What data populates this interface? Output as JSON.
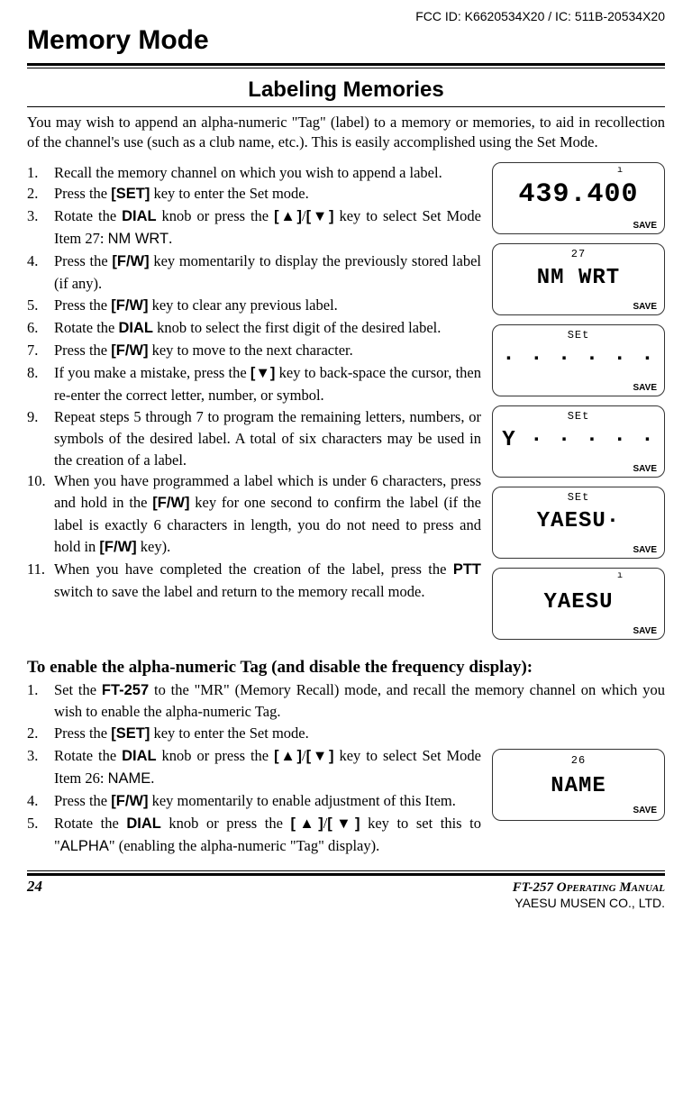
{
  "meta": {
    "fcc": "FCC ID: K6620534X20 /  IC: 511B-20534X20",
    "chapter": "Memory Mode",
    "section": "Labeling Memories",
    "page_number": "24",
    "manual": "FT-257 Operating Manual",
    "company": "YAESU MUSEN CO., LTD."
  },
  "intro": "You may wish to append an alpha-numeric \"Tag\" (label) to a memory or memories, to aid in recollection of the channel's use (such as a club name, etc.). This is easily accomplished using the Set Mode.",
  "figures": [
    {
      "tick": "ı",
      "small": "",
      "main": "439.400",
      "save": "SAVE",
      "style": "digits"
    },
    {
      "tick": "",
      "small": "27",
      "main": "NM  WRT",
      "save": "SAVE",
      "style": "text"
    },
    {
      "tick": "",
      "small": "SEt",
      "main": "·  ·  ·  ·  ·  ·",
      "save": "SAVE",
      "style": "dots"
    },
    {
      "tick": "",
      "small": "SEt",
      "main": "Y ·  ·  ·  ·  ·",
      "save": "SAVE",
      "style": "dots"
    },
    {
      "tick": "",
      "small": "SEt",
      "main": "YAESU·",
      "save": "SAVE",
      "style": "text"
    },
    {
      "tick": "ı",
      "small": "",
      "main": "YAESU",
      "save": "SAVE",
      "style": "text"
    }
  ],
  "steps1": [
    {
      "n": "1.",
      "pre": "Recall the memory channel on which you wish to append a label."
    },
    {
      "n": "2.",
      "pre": "Press the ",
      "k1": "[SET]",
      "post": " key to enter the Set mode."
    },
    {
      "n": "3.",
      "pre": "Rotate the ",
      "k1": "DIAL",
      "mid1": " knob or press the ",
      "k2": "[▲]",
      "sep": "/",
      "k3": "[▼]",
      "mid2": " key to select Set Mode Item 27: ",
      "code": "NM WRT",
      "post": "."
    },
    {
      "n": "4.",
      "pre": "Press the ",
      "k1": "[F/W]",
      "post": " key momentarily to display the previously stored label (if any)."
    },
    {
      "n": "5.",
      "pre": "Press the ",
      "k1": "[F/W]",
      "post": " key to clear any previous label."
    },
    {
      "n": "6.",
      "pre": "Rotate the ",
      "k1": "DIAL",
      "post": " knob to select the first digit of the desired label."
    },
    {
      "n": "7.",
      "pre": "Press the ",
      "k1": "[F/W]",
      "post": " key to move to the next character."
    },
    {
      "n": "8.",
      "pre": "If you make a mistake, press the ",
      "k1": "[▼]",
      "post": " key to back-space the cursor, then re-enter the correct letter, number, or symbol."
    },
    {
      "n": "9.",
      "pre": "Repeat steps 5 through 7 to program the remaining letters, numbers, or symbols of the desired label. A total of six characters may be used in the creation of a label."
    },
    {
      "n": "10.",
      "pre": "When you have programmed a label which is under 6 characters, press and hold in the ",
      "k1": "[F/W]",
      "mid1": " key for one second to confirm the label (if the label is exactly 6 characters in length, you do not need to press and hold in ",
      "k2": "[F/W]",
      "post": " key)."
    },
    {
      "n": "11.",
      "pre": "When you have completed the creation of the label, press the ",
      "k1": "PTT",
      "post": " switch to save the label and return to the memory recall mode."
    }
  ],
  "subheading": "To enable the alpha-numeric Tag (and disable the frequency display):",
  "figures2": [
    {
      "tick": "",
      "small": "26",
      "main": "NAME",
      "save": "SAVE",
      "style": "text"
    }
  ],
  "steps2": [
    {
      "n": "1.",
      "pre": "Set the ",
      "k1": "FT-257",
      "post": " to the \"MR\" (Memory Recall) mode, and recall the memory channel on which you wish to enable the alpha-numeric Tag."
    },
    {
      "n": "2.",
      "pre": "Press the ",
      "k1": "[SET]",
      "post": " key to enter the Set mode."
    },
    {
      "n": "3.",
      "pre": "Rotate the ",
      "k1": "DIAL",
      "mid1": " knob or press the ",
      "k2": "[▲]",
      "sep": "/",
      "k3": "[▼]",
      "mid2": " key to select Set Mode Item 26: ",
      "code": "NAME",
      "post": "."
    },
    {
      "n": "4.",
      "pre": "Press the ",
      "k1": "[F/W]",
      "post": " key momentarily to enable adjustment of this Item."
    },
    {
      "n": "5.",
      "pre": "Rotate the ",
      "k1": "DIAL",
      "mid1": " knob or press the ",
      "k2": "[▲]",
      "sep": "/",
      "k3": "[▼]",
      "mid2": " key to set this to \"",
      "code": "ALPHA",
      "post": "\" (enabling the alpha-numeric \"Tag\" display)."
    }
  ]
}
